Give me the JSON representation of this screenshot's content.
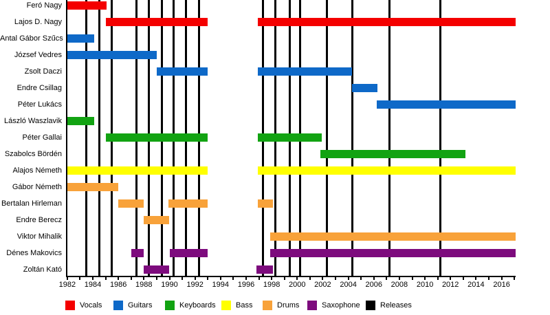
{
  "chart_data": {
    "type": "timeline",
    "title": "",
    "description": "Band members timeline (Gantt-style bars per member by instrument) with vertical black lines marking releases",
    "x_axis": {
      "min": 1981.9,
      "max": 2017.1,
      "labeled_ticks": [
        1982,
        1984,
        1986,
        1988,
        1990,
        1992,
        1994,
        1996,
        1998,
        2000,
        2002,
        2004,
        2006,
        2008,
        2010,
        2012,
        2014,
        2016
      ],
      "minor_tick_every_years": 1,
      "grid": false
    },
    "colors": {
      "vocals": "#f40000",
      "guitars": "#0e69c8",
      "keyboards": "#12a312",
      "bass": "#ffff00",
      "drums": "#f8a23a",
      "saxophone": "#7d0b7d",
      "releases": "#000000"
    },
    "legend": [
      {
        "label": "Vocals",
        "color_key": "vocals"
      },
      {
        "label": "Guitars",
        "color_key": "guitars"
      },
      {
        "label": "Keyboards",
        "color_key": "keyboards"
      },
      {
        "label": "Bass",
        "color_key": "bass"
      },
      {
        "label": "Drums",
        "color_key": "drums"
      },
      {
        "label": "Saxophone",
        "color_key": "saxophone"
      },
      {
        "label": "Releases",
        "color_key": "releases"
      }
    ],
    "legend_position": "bottom",
    "release_years": [
      1983.5,
      1984.5,
      1985.5,
      1987.4,
      1988.4,
      1989.4,
      1990.3,
      1991.3,
      1992.3,
      1997.3,
      1998.3,
      1999.4,
      2000.2,
      2002.3,
      2004.3,
      2007.2,
      2011.2
    ],
    "rows": [
      {
        "name": "Feró Nagy",
        "role": "Vocals",
        "color_key": "vocals",
        "periods": [
          [
            1982.0,
            1985.1
          ]
        ]
      },
      {
        "name": "Lajos D. Nagy",
        "role": "Vocals",
        "color_key": "vocals",
        "periods": [
          [
            1985.0,
            1993.0
          ],
          [
            1996.9,
            2017.1
          ]
        ]
      },
      {
        "name": "Antal Gábor Szűcs",
        "role": "Guitars",
        "color_key": "guitars",
        "periods": [
          [
            1982.0,
            1984.1
          ]
        ]
      },
      {
        "name": "József Vedres",
        "role": "Guitars",
        "color_key": "guitars",
        "periods": [
          [
            1982.0,
            1989.0
          ]
        ]
      },
      {
        "name": "Zsolt Daczi",
        "role": "Guitars",
        "color_key": "guitars",
        "periods": [
          [
            1989.0,
            1993.0
          ],
          [
            1996.9,
            2004.3
          ]
        ]
      },
      {
        "name": "Endre Csillag",
        "role": "Guitars",
        "color_key": "guitars",
        "periods": [
          [
            2004.3,
            2006.3
          ]
        ]
      },
      {
        "name": "Péter Lukács",
        "role": "Guitars",
        "color_key": "guitars",
        "periods": [
          [
            2006.2,
            2017.1
          ]
        ]
      },
      {
        "name": "László Waszlavik",
        "role": "Keyboards",
        "color_key": "keyboards",
        "periods": [
          [
            1982.0,
            1984.1
          ]
        ]
      },
      {
        "name": "Péter Gallai",
        "role": "Keyboards",
        "color_key": "keyboards",
        "periods": [
          [
            1985.0,
            1993.0
          ],
          [
            1996.9,
            2001.9
          ]
        ]
      },
      {
        "name": "Szabolcs Bördén",
        "role": "Keyboards",
        "color_key": "keyboards",
        "periods": [
          [
            2001.8,
            2013.2
          ]
        ]
      },
      {
        "name": "Alajos Németh",
        "role": "Bass",
        "color_key": "bass",
        "periods": [
          [
            1982.0,
            1993.0
          ],
          [
            1996.9,
            2017.1
          ]
        ]
      },
      {
        "name": "Gábor Németh",
        "role": "Drums",
        "color_key": "drums",
        "periods": [
          [
            1982.0,
            1986.0
          ]
        ]
      },
      {
        "name": "Bertalan Hirleman",
        "role": "Drums",
        "color_key": "drums",
        "periods": [
          [
            1986.0,
            1988.0
          ],
          [
            1989.9,
            1993.0
          ],
          [
            1996.9,
            1998.1
          ]
        ]
      },
      {
        "name": "Endre Berecz",
        "role": "Drums",
        "color_key": "drums",
        "periods": [
          [
            1988.0,
            1990.0
          ]
        ]
      },
      {
        "name": "Viktor Mihalik",
        "role": "Drums",
        "color_key": "drums",
        "periods": [
          [
            1997.9,
            2017.1
          ]
        ]
      },
      {
        "name": "Dénes Makovics",
        "role": "Saxophone",
        "color_key": "saxophone",
        "periods": [
          [
            1987.0,
            1988.0
          ],
          [
            1990.0,
            1993.0
          ],
          [
            1997.9,
            2017.1
          ]
        ]
      },
      {
        "name": "Zoltán Kató",
        "role": "Saxophone",
        "color_key": "saxophone",
        "periods": [
          [
            1988.0,
            1990.0
          ],
          [
            1996.8,
            1998.1
          ]
        ]
      }
    ]
  }
}
